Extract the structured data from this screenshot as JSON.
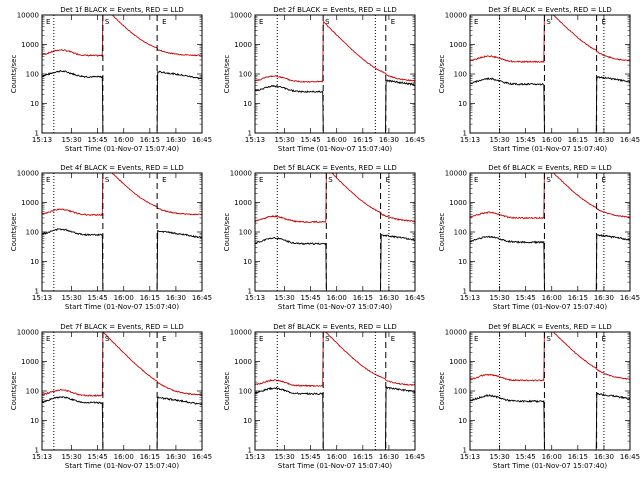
{
  "common": {
    "xticks": [
      "15:13",
      "15:30",
      "15:45",
      "16:00",
      "16:15",
      "16:30",
      "16:45"
    ],
    "yticks": [
      "1",
      "10",
      "100",
      "1000",
      "10000"
    ],
    "ylabel": "Counts/sec",
    "xlabel": "Start Time (01-Nov-07 15:07:40)",
    "markers": [
      "E",
      "S",
      "E"
    ]
  },
  "chart_data": [
    {
      "type": "line",
      "title": "Det 1f BLACK = Events, RED = LLD",
      "ylim": [
        1,
        10000
      ],
      "yscale": "log",
      "black_base": 80,
      "red_base": 420,
      "red_peak": 20000,
      "dashed": [
        15.8,
        16.32
      ],
      "dotted": [
        15.33
      ],
      "flare_start": 15.8,
      "flare_end": 16.32,
      "post_level": 120
    },
    {
      "type": "line",
      "title": "Det 2f BLACK = Events, RED = LLD",
      "ylim": [
        1,
        10000
      ],
      "yscale": "log",
      "black_base": 25,
      "red_base": 55,
      "red_peak": 6000,
      "dashed": [
        15.87,
        16.47
      ],
      "dotted": [
        15.43,
        16.37
      ],
      "flare_start": 15.87,
      "flare_end": 16.47,
      "post_level": 60
    },
    {
      "type": "line",
      "title": "Det 3f BLACK = Events, RED = LLD",
      "ylim": [
        1,
        10000
      ],
      "yscale": "log",
      "black_base": 45,
      "red_base": 260,
      "red_peak": 20000,
      "dashed": [
        15.93,
        16.43
      ],
      "dotted": [
        15.5,
        16.5
      ],
      "flare_start": 15.93,
      "flare_end": 16.43,
      "post_level": 80
    },
    {
      "type": "line",
      "title": "Det 4f BLACK = Events, RED = LLD",
      "ylim": [
        1,
        10000
      ],
      "yscale": "log",
      "black_base": 80,
      "red_base": 380,
      "red_peak": 20000,
      "dashed": [
        15.8,
        16.32
      ],
      "dotted": [
        15.33
      ],
      "flare_start": 15.8,
      "flare_end": 16.32,
      "post_level": 110
    },
    {
      "type": "line",
      "title": "Det 5f BLACK = Events, RED = LLD",
      "ylim": [
        1,
        10000
      ],
      "yscale": "log",
      "black_base": 40,
      "red_base": 220,
      "red_peak": 15000,
      "dashed": [
        15.9,
        16.42
      ],
      "dotted": [
        15.43,
        16.5
      ],
      "flare_start": 15.9,
      "flare_end": 16.42,
      "post_level": 80
    },
    {
      "type": "line",
      "title": "Det 6f BLACK = Events, RED = LLD",
      "ylim": [
        1,
        10000
      ],
      "yscale": "log",
      "black_base": 45,
      "red_base": 300,
      "red_peak": 20000,
      "dashed": [
        15.93,
        16.43
      ],
      "dotted": [
        15.5,
        16.5
      ],
      "flare_start": 15.93,
      "flare_end": 16.43,
      "post_level": 80
    },
    {
      "type": "line",
      "title": "Det 7f BLACK = Events, RED = LLD",
      "ylim": [
        1,
        10000
      ],
      "yscale": "log",
      "black_base": 40,
      "red_base": 70,
      "red_peak": 10000,
      "dashed": [
        15.8,
        16.32
      ],
      "dotted": [
        15.33
      ],
      "flare_start": 15.8,
      "flare_end": 16.32,
      "post_level": 60
    },
    {
      "type": "line",
      "title": "Det 8f BLACK = Events, RED = LLD",
      "ylim": [
        1,
        10000
      ],
      "yscale": "log",
      "black_base": 80,
      "red_base": 150,
      "red_peak": 12000,
      "dashed": [
        15.87,
        16.47
      ],
      "dotted": [
        15.43,
        16.37
      ],
      "flare_start": 15.87,
      "flare_end": 16.47,
      "post_level": 130
    },
    {
      "type": "line",
      "title": "Det 9f BLACK = Events, RED = LLD",
      "ylim": [
        1,
        10000
      ],
      "yscale": "log",
      "black_base": 45,
      "red_base": 230,
      "red_peak": 20000,
      "dashed": [
        15.93,
        16.43
      ],
      "dotted": [
        15.5,
        16.5
      ],
      "flare_start": 15.93,
      "flare_end": 16.43,
      "post_level": 80
    }
  ]
}
